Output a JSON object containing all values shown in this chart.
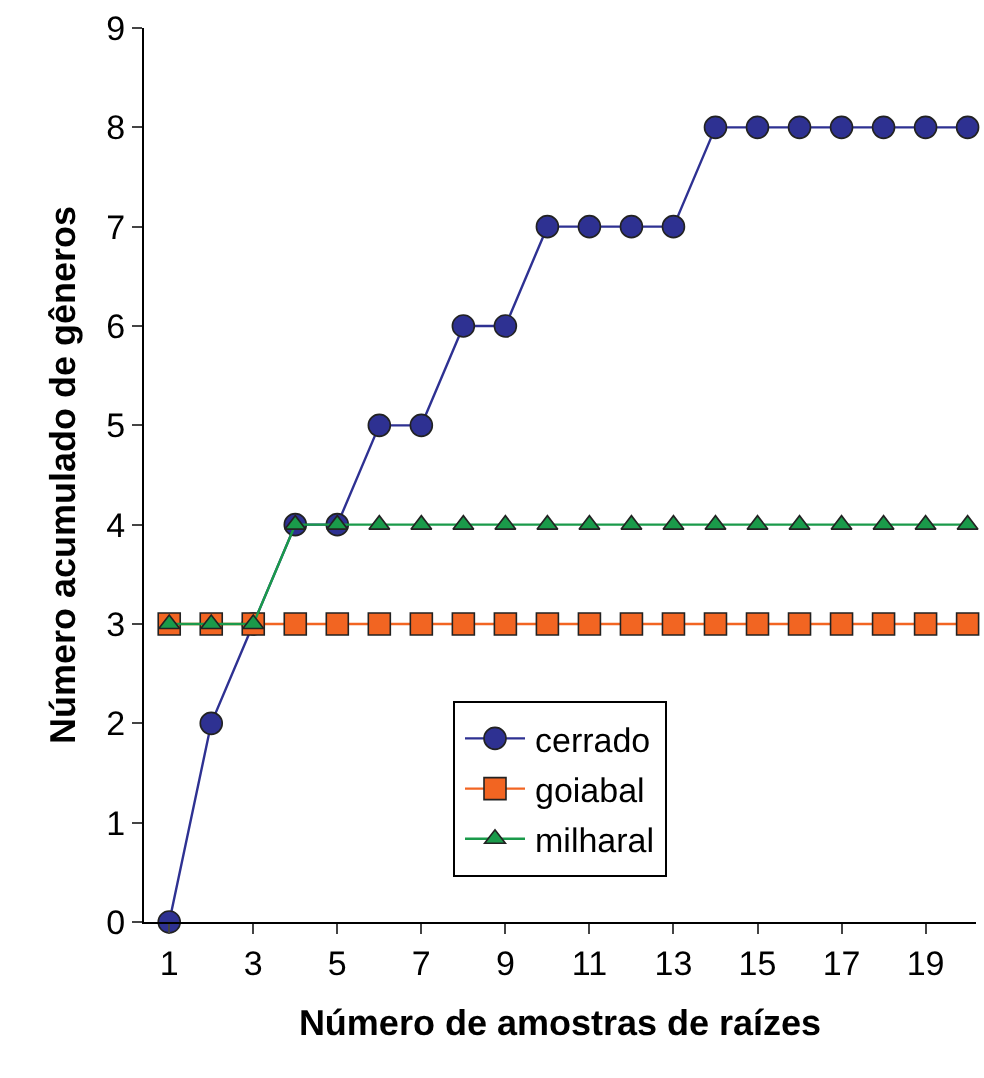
{
  "chart_data": {
    "type": "line",
    "xlabel": "Número de amostras de raízes",
    "ylabel": "Número acumulado de gêneros",
    "x": [
      1,
      2,
      3,
      4,
      5,
      6,
      7,
      8,
      9,
      10,
      11,
      12,
      13,
      14,
      15,
      16,
      17,
      18,
      19,
      20
    ],
    "series": [
      {
        "name": "cerrado",
        "color": "#2e3192",
        "marker": "circle",
        "values": [
          0,
          2,
          3,
          4,
          4,
          5,
          5,
          6,
          6,
          7,
          7,
          7,
          7,
          8,
          8,
          8,
          8,
          8,
          8,
          8
        ]
      },
      {
        "name": "goiabal",
        "color": "#f26522",
        "marker": "square",
        "values": [
          3,
          3,
          3,
          3,
          3,
          3,
          3,
          3,
          3,
          3,
          3,
          3,
          3,
          3,
          3,
          3,
          3,
          3,
          3,
          3
        ]
      },
      {
        "name": "milharal",
        "color": "#1a9a4a",
        "marker": "triangle",
        "values": [
          3,
          3,
          3,
          4,
          4,
          4,
          4,
          4,
          4,
          4,
          4,
          4,
          4,
          4,
          4,
          4,
          4,
          4,
          4,
          4
        ]
      }
    ],
    "xlim": [
      0.4,
      20.2
    ],
    "xticks": [
      1,
      3,
      5,
      7,
      9,
      11,
      13,
      15,
      17,
      19
    ],
    "ylim": [
      0,
      9
    ],
    "yticks": [
      0,
      1,
      2,
      3,
      4,
      5,
      6,
      7,
      8,
      9
    ],
    "grid": false,
    "legend": "bottom",
    "line_style": "solid"
  }
}
